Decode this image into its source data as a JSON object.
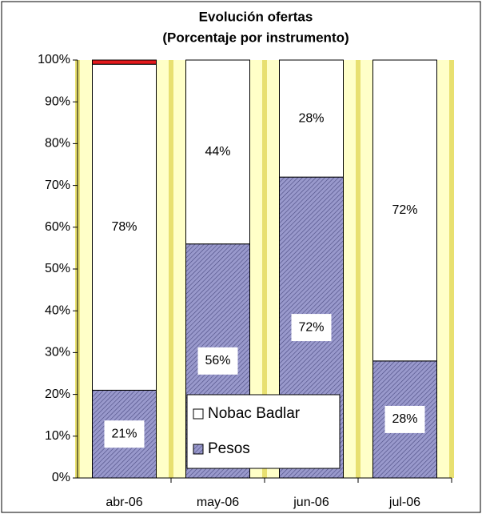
{
  "chart_data": {
    "type": "bar",
    "stacked": true,
    "title": [
      "Evolución ofertas",
      "(Porcentaje por instrumento)"
    ],
    "categories": [
      "abr-06",
      "may-06",
      "jun-06",
      "jul-06"
    ],
    "series": [
      {
        "name": "Pesos",
        "color": "#9999cc",
        "values": [
          21,
          56,
          72,
          28
        ],
        "value_labels": [
          "21%",
          "56%",
          "72%",
          "28%"
        ]
      },
      {
        "name": "Nobac Badlar",
        "color": "#ffffff",
        "values": [
          78,
          44,
          28,
          72
        ],
        "value_labels": [
          "78%",
          "44%",
          "28%",
          "72%"
        ]
      },
      {
        "color": "#e31a1c",
        "values": [
          1,
          0,
          0,
          0
        ]
      }
    ],
    "ylim": [
      0,
      100
    ],
    "yticks": [
      {
        "value": 0,
        "label": "0%"
      },
      {
        "value": 10,
        "label": "10%"
      },
      {
        "value": 20,
        "label": "20%"
      },
      {
        "value": 30,
        "label": "30%"
      },
      {
        "value": 40,
        "label": "40%"
      },
      {
        "value": 50,
        "label": "50%"
      },
      {
        "value": 60,
        "label": "60%"
      },
      {
        "value": 70,
        "label": "70%"
      },
      {
        "value": 80,
        "label": "80%"
      },
      {
        "value": 90,
        "label": "90%"
      },
      {
        "value": 100,
        "label": "100%"
      }
    ],
    "legend": "bottom-center"
  }
}
